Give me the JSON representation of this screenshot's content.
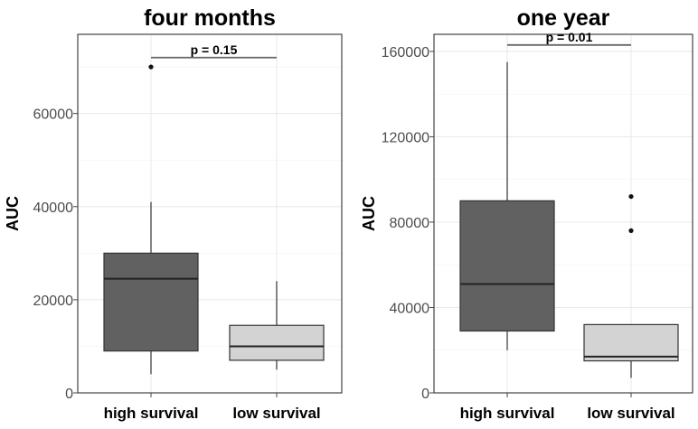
{
  "chart_data": [
    {
      "type": "box",
      "title": "four months",
      "xlabel": "",
      "ylabel": "AUC",
      "ylim": [
        0,
        77000
      ],
      "yticks": [
        0,
        20000,
        40000,
        60000
      ],
      "ytick_labels": [
        "0",
        "20000",
        "40000",
        "60000"
      ],
      "grid": true,
      "categories": [
        "high survival",
        "low survival"
      ],
      "boxes": [
        {
          "category": "high survival",
          "whisker_low": 4000,
          "q1": 9000,
          "median": 24500,
          "q3": 30000,
          "whisker_high": 41000,
          "outliers": [
            70000
          ],
          "color": "#616161"
        },
        {
          "category": "low survival",
          "whisker_low": 5000,
          "q1": 7000,
          "median": 10000,
          "q3": 14500,
          "whisker_high": 24000,
          "outliers": [],
          "color": "#d3d3d3"
        }
      ],
      "annotation": {
        "text": "p = 0.15",
        "y": 72000
      }
    },
    {
      "type": "box",
      "title": "one year",
      "xlabel": "",
      "ylabel": "AUC",
      "ylim": [
        0,
        168000
      ],
      "yticks": [
        0,
        40000,
        80000,
        120000,
        160000
      ],
      "ytick_labels": [
        "0",
        "40000",
        "80000",
        "120000",
        "160000"
      ],
      "grid": true,
      "categories": [
        "high survival",
        "low survival"
      ],
      "boxes": [
        {
          "category": "high survival",
          "whisker_low": 20000,
          "q1": 29000,
          "median": 51000,
          "q3": 90000,
          "whisker_high": 155000,
          "outliers": [],
          "color": "#616161"
        },
        {
          "category": "low survival",
          "whisker_low": 7000,
          "q1": 15000,
          "median": 17000,
          "q3": 32000,
          "whisker_high": 32000,
          "outliers": [
            76000,
            92000
          ],
          "color": "#d3d3d3"
        }
      ],
      "annotation": {
        "text": "p = 0.01",
        "y": 163000
      }
    }
  ]
}
